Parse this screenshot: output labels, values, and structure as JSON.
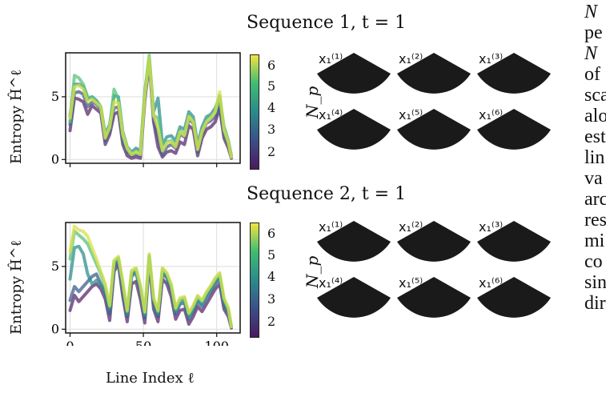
{
  "panels": [
    {
      "title": "Sequence 1, t = 1",
      "ylabel": "Entropy Ĥ^ℓ",
      "yticks": [
        "0",
        "5"
      ],
      "xticks": [
        "",
        "",
        ""
      ],
      "cbar_label": "N_p",
      "cbar_ticks": [
        "2",
        "3",
        "4",
        "5",
        "6"
      ],
      "image_labels": [
        "x₁⁽¹⁾",
        "x₁⁽²⁾",
        "x₁⁽³⁾",
        "x₁⁽⁴⁾",
        "x₁⁽⁵⁾",
        "x₁⁽⁶⁾"
      ]
    },
    {
      "title": "Sequence 2, t = 1",
      "ylabel": "Entropy Ĥ^ℓ",
      "yticks": [
        "0",
        "5"
      ],
      "xticks": [
        "0",
        "50",
        "100"
      ],
      "cbar_label": "N_p",
      "cbar_ticks": [
        "2",
        "3",
        "4",
        "5",
        "6"
      ],
      "image_labels": [
        "x₁⁽¹⁾",
        "x₁⁽²⁾",
        "x₁⁽³⁾",
        "x₁⁽⁴⁾",
        "x₁⁽⁵⁾",
        "x₁⁽⁶⁾"
      ]
    }
  ],
  "xlabel": "Line Index ℓ",
  "side_text": [
    "N",
    "pe",
    "N",
    "of",
    "sca",
    "alo",
    "est",
    "lin",
    "va",
    "arc",
    "res",
    "mi",
    "co",
    "sin",
    "dir"
  ],
  "colors": {
    "np2": "#5b2a6e",
    "np3": "#3f5f8c",
    "np4": "#2e8f8f",
    "np5": "#59c27a",
    "np6": "#d8e04a"
  },
  "chart_data": [
    {
      "type": "line",
      "title": "Sequence 1, t = 1",
      "xlabel": "",
      "ylabel": "Entropy Ĥ^ℓ",
      "xlim": [
        -3,
        116
      ],
      "ylim": [
        -0.3,
        8.5
      ],
      "x": [
        0,
        3,
        6,
        9,
        12,
        15,
        18,
        21,
        24,
        27,
        30,
        33,
        36,
        39,
        42,
        45,
        48,
        51,
        54,
        57,
        60,
        63,
        66,
        69,
        72,
        75,
        78,
        81,
        84,
        87,
        90,
        93,
        96,
        99,
        102,
        105,
        108,
        110
      ],
      "series": [
        {
          "name": "2",
          "values": [
            2.3,
            4.9,
            4.8,
            4.6,
            3.6,
            4.3,
            4.0,
            3.7,
            1.2,
            2.0,
            3.6,
            3.8,
            1.2,
            0.3,
            0.1,
            0.2,
            0.1,
            4.7,
            7.8,
            3.0,
            1.0,
            0.2,
            0.6,
            0.7,
            0.5,
            1.4,
            1.2,
            2.7,
            2.4,
            0.3,
            1.7,
            2.4,
            2.6,
            3.0,
            4.1,
            1.7,
            0.9,
            0.1
          ]
        },
        {
          "name": "3",
          "values": [
            2.8,
            5.3,
            5.4,
            5.2,
            4.2,
            4.6,
            4.4,
            4.0,
            1.5,
            2.3,
            4.1,
            4.2,
            1.6,
            0.6,
            0.3,
            0.4,
            0.3,
            5.0,
            8.0,
            3.3,
            1.8,
            0.4,
            1.0,
            1.2,
            0.9,
            2.0,
            1.8,
            3.2,
            2.9,
            0.6,
            2.0,
            2.9,
            3.1,
            3.4,
            4.4,
            2.1,
            1.2,
            0.2
          ]
        },
        {
          "name": "4",
          "values": [
            3.5,
            6.0,
            6.0,
            5.8,
            4.8,
            5.0,
            4.7,
            4.2,
            2.0,
            2.8,
            5.1,
            5.0,
            2.2,
            1.0,
            0.6,
            0.9,
            0.7,
            5.4,
            8.1,
            3.8,
            4.9,
            1.2,
            1.8,
            1.9,
            1.5,
            2.6,
            2.4,
            3.8,
            3.4,
            1.2,
            2.6,
            3.4,
            3.6,
            4.1,
            5.0,
            2.6,
            1.5,
            0.3
          ]
        },
        {
          "name": "5",
          "values": [
            3.0,
            6.7,
            6.5,
            6.0,
            5.0,
            4.9,
            4.6,
            4.1,
            1.8,
            2.5,
            5.6,
            4.8,
            1.9,
            0.8,
            0.5,
            0.7,
            0.5,
            5.3,
            8.3,
            3.5,
            3.3,
            0.9,
            1.4,
            1.5,
            1.2,
            2.3,
            2.0,
            3.5,
            3.1,
            0.9,
            2.3,
            3.1,
            3.4,
            3.8,
            5.1,
            2.3,
            1.3,
            0.2
          ]
        },
        {
          "name": "6",
          "values": [
            3.3,
            5.8,
            5.9,
            5.6,
            4.6,
            4.8,
            4.5,
            4.2,
            1.7,
            2.6,
            4.6,
            4.5,
            2.0,
            0.9,
            0.4,
            0.6,
            0.4,
            5.1,
            8.1,
            3.5,
            2.5,
            0.7,
            1.3,
            1.4,
            1.0,
            2.2,
            1.9,
            3.4,
            3.0,
            0.8,
            2.2,
            3.0,
            3.3,
            3.8,
            5.4,
            2.4,
            1.4,
            0.2
          ]
        }
      ]
    },
    {
      "type": "line",
      "title": "Sequence 2, t = 1",
      "xlabel": "Line Index ℓ",
      "ylabel": "Entropy Ĥ^ℓ",
      "xlim": [
        -3,
        116
      ],
      "ylim": [
        -0.3,
        8.5
      ],
      "x": [
        0,
        3,
        6,
        9,
        12,
        15,
        18,
        21,
        24,
        27,
        30,
        33,
        36,
        39,
        42,
        45,
        48,
        51,
        54,
        57,
        60,
        63,
        66,
        69,
        72,
        75,
        78,
        81,
        84,
        87,
        90,
        93,
        96,
        99,
        102,
        105,
        108,
        110
      ],
      "series": [
        {
          "name": "2",
          "values": [
            1.5,
            2.7,
            2.2,
            2.6,
            3.0,
            3.4,
            3.6,
            3.2,
            2.4,
            0.7,
            4.6,
            5.2,
            2.6,
            0.6,
            3.6,
            3.8,
            2.4,
            0.5,
            5.4,
            1.6,
            0.6,
            4.0,
            3.6,
            2.6,
            0.8,
            1.5,
            1.6,
            0.4,
            1.0,
            1.8,
            1.4,
            2.0,
            2.6,
            3.2,
            3.6,
            1.6,
            1.0,
            0.1
          ]
        },
        {
          "name": "3",
          "values": [
            2.3,
            3.4,
            3.0,
            3.4,
            3.8,
            4.2,
            4.4,
            3.6,
            2.9,
            1.2,
            5.0,
            5.5,
            3.1,
            1.0,
            4.2,
            4.5,
            3.0,
            0.9,
            5.7,
            2.0,
            1.0,
            4.4,
            4.1,
            3.1,
            1.2,
            2.0,
            2.1,
            0.8,
            1.4,
            2.2,
            1.8,
            2.5,
            3.0,
            3.6,
            4.0,
            2.0,
            1.3,
            0.2
          ]
        },
        {
          "name": "4",
          "values": [
            4.0,
            6.5,
            6.6,
            6.0,
            4.4,
            3.6,
            3.9,
            3.5,
            3.0,
            1.6,
            5.2,
            5.6,
            3.4,
            1.2,
            4.4,
            4.6,
            3.2,
            1.1,
            5.8,
            2.2,
            1.2,
            4.6,
            4.2,
            3.3,
            1.4,
            2.2,
            2.3,
            1.0,
            1.6,
            2.4,
            2.0,
            2.7,
            3.2,
            3.8,
            4.2,
            2.2,
            1.4,
            0.2
          ]
        },
        {
          "name": "5",
          "values": [
            5.6,
            7.8,
            7.5,
            7.2,
            6.8,
            6.0,
            5.2,
            4.4,
            3.4,
            1.8,
            5.4,
            5.7,
            3.6,
            1.4,
            4.6,
            4.8,
            3.4,
            1.3,
            5.9,
            2.4,
            1.4,
            4.8,
            4.4,
            3.5,
            1.6,
            2.4,
            2.5,
            1.2,
            1.8,
            2.6,
            2.2,
            2.9,
            3.4,
            4.0,
            4.4,
            2.4,
            1.6,
            0.2
          ]
        },
        {
          "name": "6",
          "values": [
            6.2,
            8.2,
            7.9,
            7.8,
            7.4,
            6.5,
            5.6,
            4.6,
            3.6,
            1.9,
            5.5,
            5.8,
            3.8,
            1.5,
            4.7,
            4.9,
            3.5,
            1.4,
            6.0,
            2.5,
            1.5,
            4.9,
            4.5,
            3.6,
            1.7,
            2.5,
            2.6,
            1.3,
            1.9,
            2.7,
            2.3,
            3.0,
            3.5,
            4.1,
            4.5,
            2.5,
            1.7,
            0.2
          ]
        }
      ]
    }
  ]
}
